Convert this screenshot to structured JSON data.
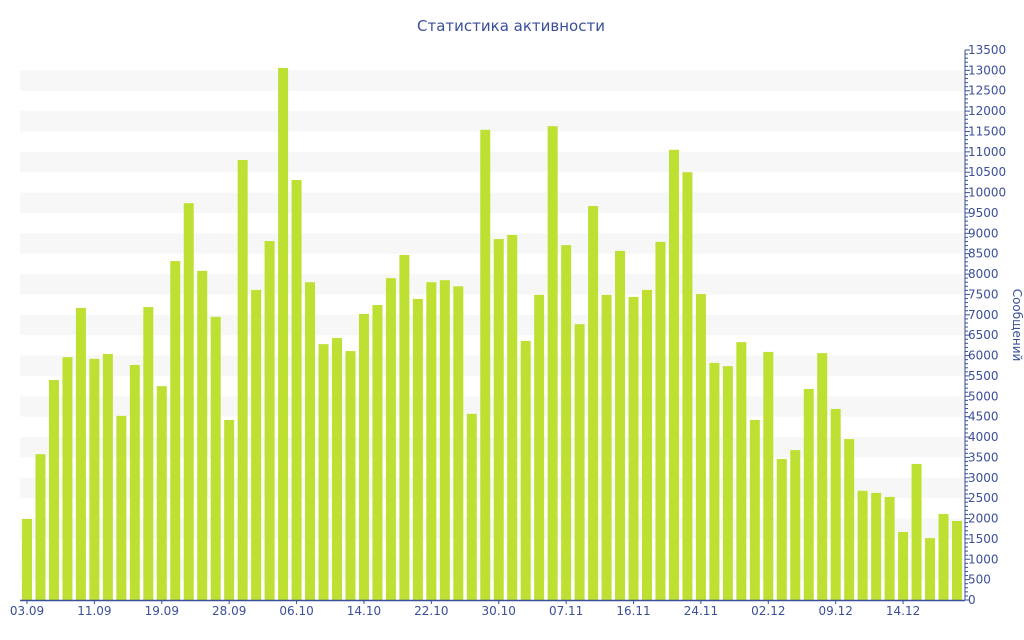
{
  "chart_data": {
    "type": "bar",
    "title": "Статистика активности",
    "xlabel": "",
    "ylabel": "Сообщений",
    "ylim": [
      0,
      13500
    ],
    "y_ticks": [
      "0",
      "500",
      "1000",
      "1500",
      "2000",
      "2500",
      "3000",
      "3500",
      "4000",
      "4500",
      "5000",
      "5500",
      "6000",
      "6500",
      "7000",
      "7500",
      "8000",
      "8500",
      "9000",
      "9500",
      "10000",
      "10500",
      "11000",
      "11500",
      "12000",
      "12500",
      "13000",
      "13500"
    ],
    "y_axis_position": "right",
    "grid": "alternating horizontal bands",
    "x_tick_labels": [
      {
        "bar_index": 0,
        "label": "03.09"
      },
      {
        "bar_index": 5,
        "label": "11.09"
      },
      {
        "bar_index": 10,
        "label": "19.09"
      },
      {
        "bar_index": 15,
        "label": "28.09"
      },
      {
        "bar_index": 20,
        "label": "06.10"
      },
      {
        "bar_index": 25,
        "label": "14.10"
      },
      {
        "bar_index": 30,
        "label": "22.10"
      },
      {
        "bar_index": 35,
        "label": "30.10"
      },
      {
        "bar_index": 40,
        "label": "07.11"
      },
      {
        "bar_index": 45,
        "label": "16.11"
      },
      {
        "bar_index": 50,
        "label": "24.11"
      },
      {
        "bar_index": 55,
        "label": "02.12"
      },
      {
        "bar_index": 60,
        "label": "09.12"
      },
      {
        "bar_index": 65,
        "label": "14.12"
      }
    ],
    "values": [
      1990,
      3580,
      5400,
      5960,
      7170,
      5920,
      6040,
      4520,
      5770,
      7190,
      5250,
      8320,
      9740,
      8080,
      6950,
      4420,
      10800,
      7610,
      8810,
      13060,
      10310,
      7800,
      6280,
      6430,
      6110,
      7020,
      7240,
      7900,
      8470,
      7390,
      7800,
      7850,
      7700,
      4570,
      11540,
      8860,
      8960,
      6360,
      7490,
      11630,
      8710,
      6770,
      9670,
      7490,
      8570,
      7440,
      7610,
      8790,
      11050,
      10500,
      7510,
      5820,
      5740,
      6330,
      4420,
      6090,
      3460,
      3680,
      5180,
      6060,
      4690,
      3950,
      2680,
      2630,
      2530,
      1670,
      3340,
      1520,
      2110,
      1940
    ],
    "colors": {
      "bar": "#bde032",
      "axis": "#3b4f9a",
      "band": "#f7f7f7"
    }
  }
}
